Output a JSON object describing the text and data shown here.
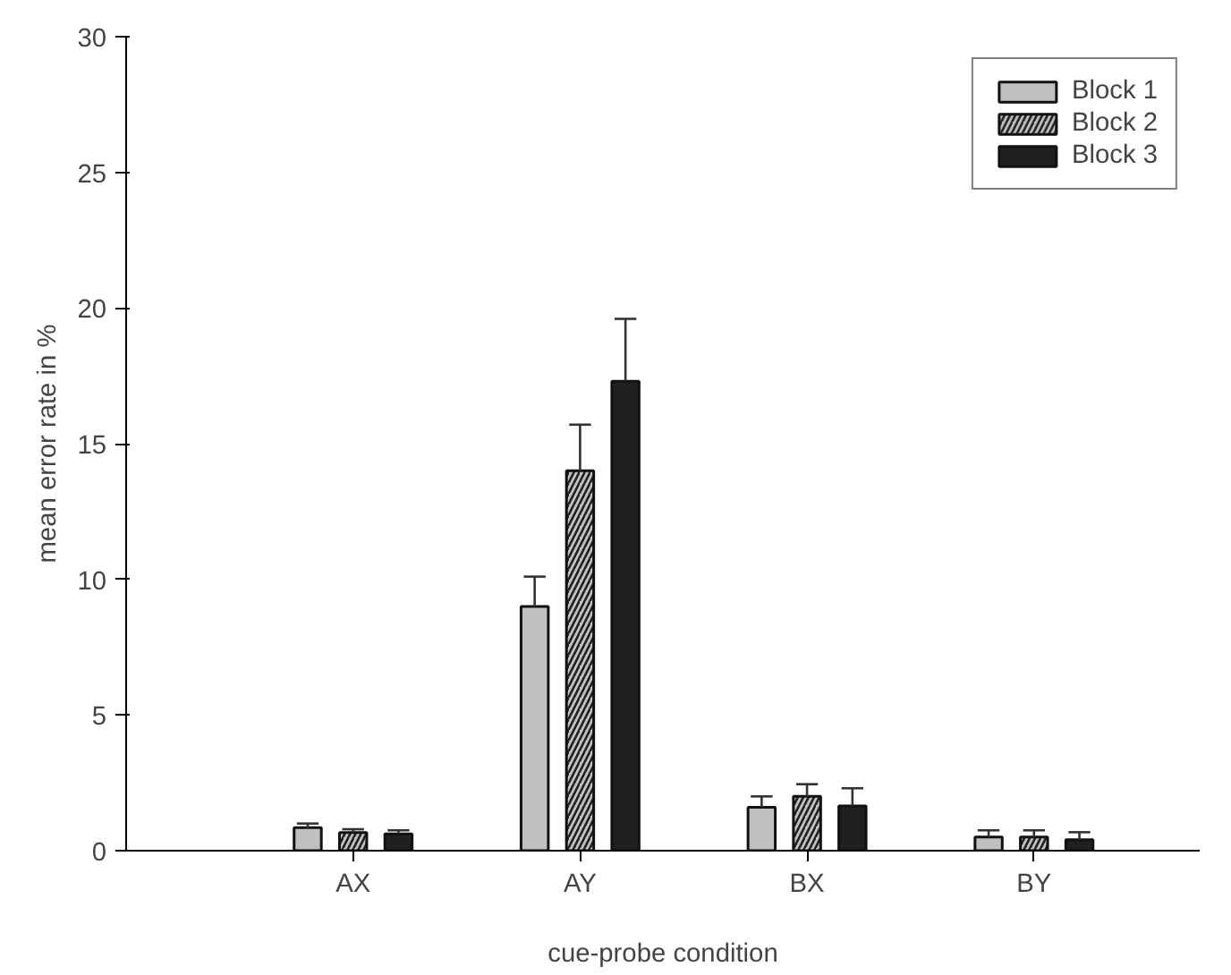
{
  "chart_data": {
    "type": "bar",
    "xlabel": "cue-probe condition",
    "ylabel": "mean error rate in %",
    "categories": [
      "AX",
      "AY",
      "BX",
      "BY"
    ],
    "series": [
      {
        "name": "Block 1",
        "color": "#c0c0c0",
        "values": [
          0.85,
          9.0,
          1.6,
          0.5
        ],
        "errors": [
          [
            0.85,
            1.0
          ],
          [
            9.0,
            10.1
          ],
          [
            1.6,
            2.0
          ],
          [
            0.5,
            0.75
          ]
        ]
      },
      {
        "name": "Block 2",
        "color": "#c0c0c0",
        "values": [
          0.67,
          14.0,
          2.0,
          0.5
        ],
        "errors": [
          [
            0.67,
            0.79
          ],
          [
            14.0,
            15.7
          ],
          [
            2.0,
            2.45
          ],
          [
            0.5,
            0.75
          ]
        ]
      },
      {
        "name": "Block 3",
        "color": "#202020",
        "values": [
          0.62,
          17.3,
          1.65,
          0.4
        ],
        "errors": [
          [
            0.62,
            0.75
          ],
          [
            17.3,
            19.6
          ],
          [
            1.65,
            2.3
          ],
          [
            0.4,
            0.68
          ]
        ]
      }
    ],
    "ylim": [
      0,
      30
    ],
    "yticks": [
      0,
      5,
      10,
      15,
      20,
      25,
      30
    ],
    "grid": false,
    "legend": "top right"
  }
}
